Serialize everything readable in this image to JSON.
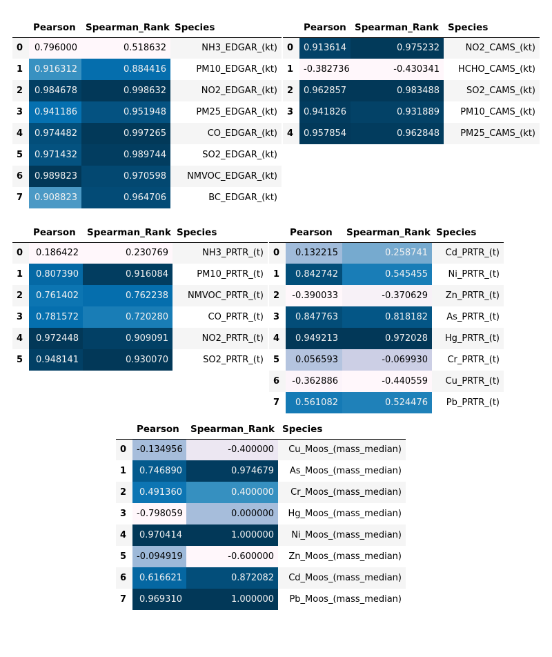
{
  "tables": [
    {
      "columns": [
        "Pearson",
        "Spearman_Rank",
        "Species"
      ],
      "rows": [
        [
          "0",
          "0.796000",
          "0.518632",
          "NH3_EDGAR_(kt)"
        ],
        [
          "1",
          "0.916312",
          "0.884416",
          "PM10_EDGAR_(kt)"
        ],
        [
          "2",
          "0.984678",
          "0.998632",
          "NO2_EDGAR_(kt)"
        ],
        [
          "3",
          "0.941186",
          "0.951948",
          "PM25_EDGAR_(kt)"
        ],
        [
          "4",
          "0.974482",
          "0.997265",
          "CO_EDGAR_(kt)"
        ],
        [
          "5",
          "0.971432",
          "0.989744",
          "SO2_EDGAR_(kt)"
        ],
        [
          "6",
          "0.989823",
          "0.970598",
          "NMVOC_EDGAR_(kt)"
        ],
        [
          "7",
          "0.908823",
          "0.964706",
          "BC_EDGAR_(kt)"
        ]
      ]
    },
    {
      "columns": [
        "Pearson",
        "Spearman_Rank",
        "Species"
      ],
      "rows": [
        [
          "0",
          "0.913614",
          "0.975232",
          "NO2_CAMS_(kt)"
        ],
        [
          "1",
          "-0.382736",
          "-0.430341",
          "HCHO_CAMS_(kt)"
        ],
        [
          "2",
          "0.962857",
          "0.983488",
          "SO2_CAMS_(kt)"
        ],
        [
          "3",
          "0.941826",
          "0.931889",
          "PM10_CAMS_(kt)"
        ],
        [
          "4",
          "0.957854",
          "0.962848",
          "PM25_CAMS_(kt)"
        ]
      ]
    },
    {
      "columns": [
        "Pearson",
        "Spearman_Rank",
        "Species"
      ],
      "rows": [
        [
          "0",
          "0.186422",
          "0.230769",
          "NH3_PRTR_(t)"
        ],
        [
          "1",
          "0.807390",
          "0.916084",
          "PM10_PRTR_(t)"
        ],
        [
          "2",
          "0.761402",
          "0.762238",
          "NMVOC_PRTR_(t)"
        ],
        [
          "3",
          "0.781572",
          "0.720280",
          "CO_PRTR_(t)"
        ],
        [
          "4",
          "0.972448",
          "0.909091",
          "NO2_PRTR_(t)"
        ],
        [
          "5",
          "0.948141",
          "0.930070",
          "SO2_PRTR_(t)"
        ]
      ]
    },
    {
      "columns": [
        "Pearson",
        "Spearman_Rank",
        "Species"
      ],
      "rows": [
        [
          "0",
          "0.132215",
          "0.258741",
          "Cd_PRTR_(t)"
        ],
        [
          "1",
          "0.842742",
          "0.545455",
          "Ni_PRTR_(t)"
        ],
        [
          "2",
          "-0.390033",
          "-0.370629",
          "Zn_PRTR_(t)"
        ],
        [
          "3",
          "0.847763",
          "0.818182",
          "As_PRTR_(t)"
        ],
        [
          "4",
          "0.949213",
          "0.972028",
          "Hg_PRTR_(t)"
        ],
        [
          "5",
          "0.056593",
          "-0.069930",
          "Cr_PRTR_(t)"
        ],
        [
          "6",
          "-0.362886",
          "-0.440559",
          "Cu_PRTR_(t)"
        ],
        [
          "7",
          "0.561082",
          "0.524476",
          "Pb_PRTR_(t)"
        ]
      ]
    },
    {
      "columns": [
        "Pearson",
        "Spearman_Rank",
        "Species"
      ],
      "rows": [
        [
          "0",
          "-0.134956",
          "-0.400000",
          "Cu_Moos_(mass_median)"
        ],
        [
          "1",
          "0.746890",
          "0.974679",
          "As_Moos_(mass_median)"
        ],
        [
          "2",
          "0.491360",
          "0.400000",
          "Cr_Moos_(mass_median)"
        ],
        [
          "3",
          "-0.798059",
          "0.000000",
          "Hg_Moos_(mass_median)"
        ],
        [
          "4",
          "0.970414",
          "1.000000",
          "Ni_Moos_(mass_median)"
        ],
        [
          "5",
          "-0.094919",
          "-0.600000",
          "Zn_Moos_(mass_median)"
        ],
        [
          "6",
          "0.616621",
          "0.872082",
          "Cd_Moos_(mass_median)"
        ],
        [
          "7",
          "0.969310",
          "1.000000",
          "Pb_Moos_(mass_median)"
        ]
      ]
    }
  ]
}
